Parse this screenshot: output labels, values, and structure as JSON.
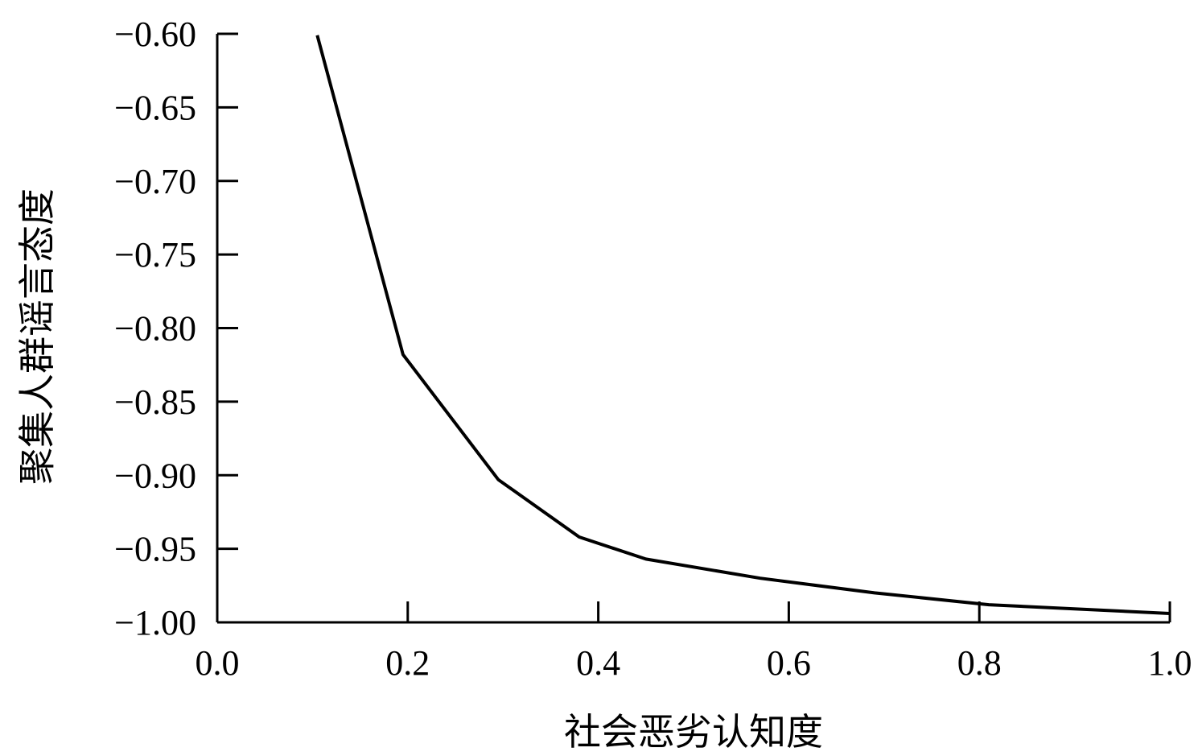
{
  "chart_data": {
    "type": "line",
    "title": "",
    "xlabel": "社会恶劣认知度",
    "ylabel": "聚集人群谣言态度",
    "xlim": [
      0.0,
      1.0
    ],
    "ylim": [
      -1.0,
      -0.6
    ],
    "x_ticks": [
      "0.0",
      "0.2",
      "0.4",
      "0.6",
      "0.8",
      "1.0"
    ],
    "x_tick_values": [
      0.0,
      0.2,
      0.4,
      0.6,
      0.8,
      1.0
    ],
    "y_ticks": [
      "−0.60",
      "−0.65",
      "−0.70",
      "−0.75",
      "−0.80",
      "−0.85",
      "−0.90",
      "−0.95",
      "−1.00"
    ],
    "y_tick_values": [
      -0.6,
      -0.65,
      -0.7,
      -0.75,
      -0.8,
      -0.85,
      -0.9,
      -0.95,
      -1.0
    ],
    "grid": false,
    "series": [
      {
        "x": [
          0.105,
          0.195,
          0.295,
          0.38,
          0.45,
          0.57,
          0.69,
          0.81,
          1.0
        ],
        "y": [
          -0.601,
          -0.818,
          -0.903,
          -0.942,
          -0.957,
          -0.97,
          -0.98,
          -0.988,
          -0.994
        ],
        "color": "#000000"
      }
    ]
  }
}
